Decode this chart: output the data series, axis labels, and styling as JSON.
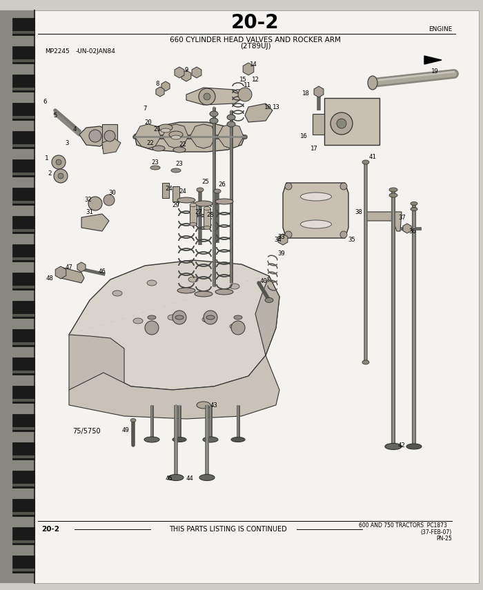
{
  "page_number": "20-2",
  "section_label": "ENGINE",
  "title_line1": "660 CYLINDER HEAD VALVES AND ROCKER ARM",
  "title_line2": "(2T89UJ)",
  "ref_left1": "MP2245",
  "ref_left2": "-UN-02JAN84",
  "bottom_left": "20-2",
  "bottom_center": "THIS PARTS LISTING IS CONTINUED",
  "bottom_right1": "600 AND 750 TRACTORS  PC1873",
  "bottom_right2": "(37-FEB-07)",
  "bottom_right3": "PN-25",
  "diagram_ref": "75/5750",
  "page_bg": "#d0ccc6",
  "white_area": "#f5f3ef",
  "spine_color": "#111111"
}
